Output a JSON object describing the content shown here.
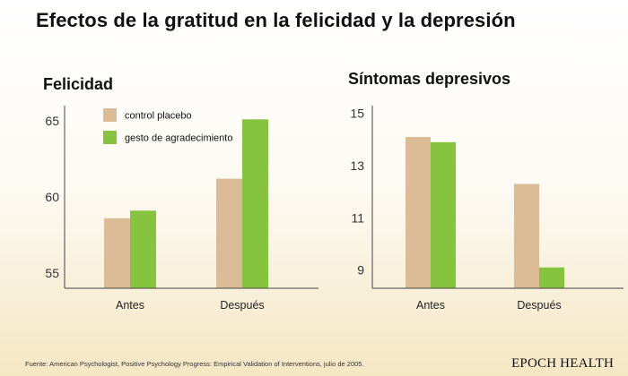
{
  "title": "Efectos de la gratitud en la felicidad y la depresión",
  "colors": {
    "control": "#dcbc97",
    "gratitude": "#86c440",
    "axis": "#444444"
  },
  "chart_data": [
    {
      "type": "bar",
      "title": "Felicidad",
      "categories": [
        "Antes",
        "Después"
      ],
      "ylim": [
        54,
        66
      ],
      "yticks": [
        55,
        60,
        65
      ],
      "legend": "top-left",
      "grid": false,
      "series": [
        {
          "name": "control placebo",
          "color": "#dcbc97",
          "values": [
            58.6,
            61.2
          ]
        },
        {
          "name": "gesto de agradecimiento",
          "color": "#86c440",
          "values": [
            59.1,
            65.1
          ]
        }
      ]
    },
    {
      "type": "bar",
      "title": "Síntomas depresivos",
      "categories": [
        "Antes",
        "Después"
      ],
      "ylim": [
        8.3,
        15.3
      ],
      "yticks": [
        9,
        11,
        13,
        15
      ],
      "legend": "none",
      "grid": false,
      "series": [
        {
          "name": "control placebo",
          "color": "#dcbc97",
          "values": [
            14.1,
            12.3
          ]
        },
        {
          "name": "gesto de agradecimiento",
          "color": "#86c440",
          "values": [
            13.9,
            9.1
          ]
        }
      ]
    }
  ],
  "footer": "Fuente: American Psychologist, Positive Psychology Progress: Empirical Validation of Interventions, julio de 2005.",
  "brand": "EPOCH HEALTH"
}
